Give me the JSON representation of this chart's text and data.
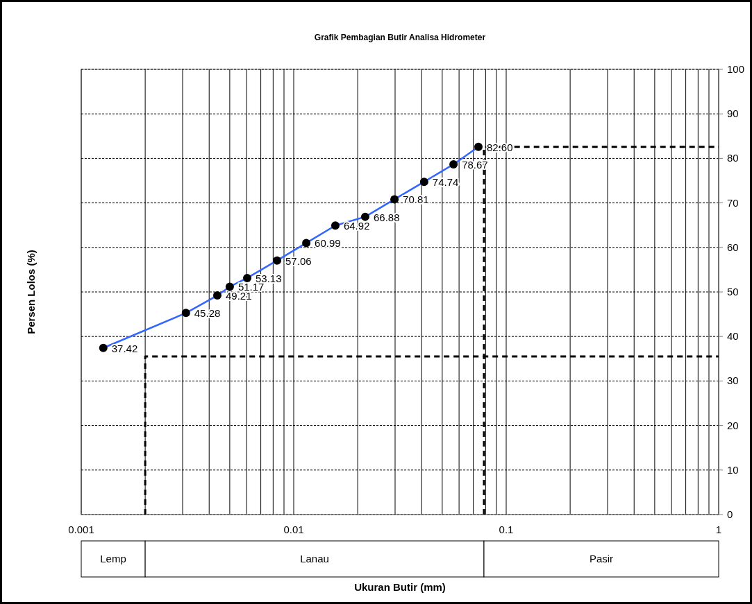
{
  "chart_data": {
    "type": "line",
    "title": "Grafik Pembagian Butir Analisa Hidrometer",
    "xlabel": "Ukuran Butir (mm)",
    "ylabel": "Persen Lolos (%)",
    "log": "x",
    "xlim": [
      0.001,
      1
    ],
    "xticks": [
      0.001,
      {
        "value": 0.002,
        "label": null
      },
      {
        "value": 0.003,
        "label": null
      },
      {
        "value": 0.004,
        "label": null
      },
      {
        "value": 0.005,
        "label": null
      },
      {
        "value": 0.006,
        "label": null
      },
      {
        "value": 0.007,
        "label": null
      },
      {
        "value": 0.008,
        "label": null
      },
      {
        "value": 0.009,
        "label": null
      },
      0.01,
      {
        "value": 0.02,
        "label": null
      },
      {
        "value": 0.03,
        "label": null
      },
      {
        "value": 0.04,
        "label": null
      },
      {
        "value": 0.05,
        "label": null
      },
      {
        "value": 0.06,
        "label": null
      },
      {
        "value": 0.07,
        "label": null
      },
      {
        "value": 0.08,
        "label": null
      },
      {
        "value": 0.09,
        "label": null
      },
      0.1,
      {
        "value": 0.2,
        "label": null
      },
      {
        "value": 0.3,
        "label": null
      },
      {
        "value": 0.4,
        "label": null
      },
      {
        "value": 0.5,
        "label": null
      },
      {
        "value": 0.6,
        "label": null
      },
      {
        "value": 0.7,
        "label": null
      },
      {
        "value": 0.8,
        "label": null
      },
      {
        "value": 0.9,
        "label": null
      },
      1
    ],
    "ylim": [
      0,
      100
    ],
    "yticks": [
      0,
      10,
      20,
      30,
      40,
      50,
      60,
      70,
      80,
      90,
      100
    ],
    "grid": true,
    "series": [
      {
        "color": "#3366ff",
        "marker": "circle",
        "line_style": "solid",
        "x": [
          0.00127,
          0.00311,
          0.00437,
          0.005,
          0.00604,
          0.00835,
          0.01146,
          0.0157,
          0.0217,
          0.0298,
          0.0411,
          0.0565,
          0.074
        ],
        "values": [
          37.42,
          45.28,
          49.21,
          51.17,
          53.13,
          57.06,
          60.99,
          64.92,
          66.88,
          70.81,
          74.74,
          78.67,
          82.6
        ],
        "value_labels": [
          "37.42",
          "45.28",
          "49.21",
          "51.17",
          "53.13",
          "57.06",
          "60.99",
          "64.92",
          "66.88",
          "70.81",
          "74.74",
          "78.67",
          "82.60"
        ]
      },
      {
        "color": "#000000",
        "marker": "none",
        "line_style": "dashed",
        "x": [
          0.002,
          0.002,
          1
        ],
        "values": [
          0,
          35.5,
          35.5
        ]
      },
      {
        "color": "#000000",
        "marker": "none",
        "line_style": "dashed",
        "x": [
          0.0786,
          0.0786,
          1
        ],
        "values": [
          0,
          82.6,
          82.6
        ]
      }
    ],
    "annotations": [
      "Lemp",
      "Lanau",
      "Pasir"
    ]
  }
}
